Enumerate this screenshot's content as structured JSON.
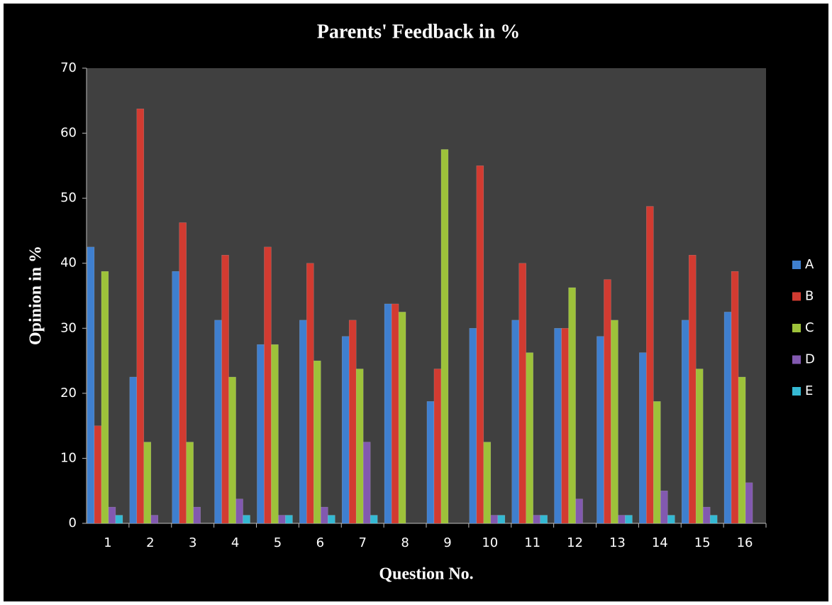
{
  "chart_data": {
    "type": "bar",
    "title": "Parents' Feedback in %",
    "x_label": "Question No.",
    "y_label": "Opinion in %",
    "categories": [
      "1",
      "2",
      "3",
      "4",
      "5",
      "6",
      "7",
      "8",
      "9",
      "10",
      "11",
      "12",
      "13",
      "14",
      "15",
      "16"
    ],
    "series": [
      {
        "name": "A",
        "color": "#3f7fcf",
        "values": [
          42.5,
          22.5,
          38.75,
          31.25,
          27.5,
          31.25,
          28.75,
          33.75,
          18.75,
          30,
          31.25,
          30,
          28.75,
          26.25,
          31.25,
          32.5
        ]
      },
      {
        "name": "B",
        "color": "#d23b31",
        "values": [
          15,
          63.75,
          46.25,
          41.25,
          42.5,
          40,
          31.25,
          33.75,
          23.75,
          55,
          40,
          30,
          37.5,
          48.75,
          41.25,
          38.75
        ]
      },
      {
        "name": "C",
        "color": "#9dc23a",
        "values": [
          38.75,
          12.5,
          12.5,
          22.5,
          27.5,
          25,
          23.75,
          32.5,
          57.5,
          12.5,
          26.25,
          36.25,
          31.25,
          18.75,
          23.75,
          22.5
        ]
      },
      {
        "name": "D",
        "color": "#8259b0",
        "values": [
          2.5,
          1.25,
          2.5,
          3.75,
          1.25,
          2.5,
          12.5,
          0,
          0,
          1.25,
          1.25,
          3.75,
          1.25,
          5,
          2.5,
          6.25
        ]
      },
      {
        "name": "E",
        "color": "#35b9d3",
        "values": [
          1.25,
          0,
          0,
          1.25,
          1.25,
          1.25,
          1.25,
          0,
          0,
          1.25,
          1.25,
          0,
          1.25,
          1.25,
          1.25,
          0
        ]
      }
    ],
    "ylim": [
      0,
      70
    ],
    "yticks": [
      0,
      10,
      20,
      30,
      40,
      50,
      60,
      70
    ],
    "legend": "right"
  }
}
